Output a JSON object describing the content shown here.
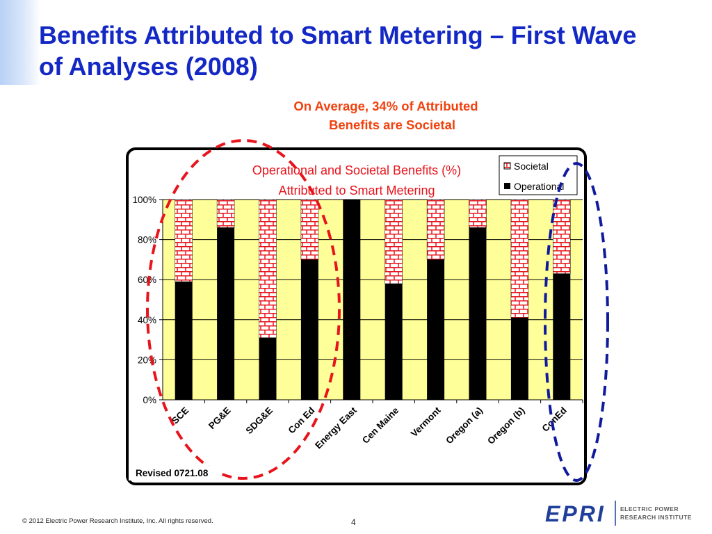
{
  "slide": {
    "title": "Benefits Attributed to Smart Metering – First Wave of Analyses (2008)",
    "callout_line1": "On Average, 34% of Attributed",
    "callout_line2": "Benefits are Societal",
    "revised_label": "Revised 0721.08",
    "footer_copyright": "© 2012 Electric Power Research Institute, Inc. All rights reserved.",
    "page_number": "4",
    "logo_text": "EPRI",
    "logo_subtitle_line1": "ELECTRIC POWER",
    "logo_subtitle_line2": "RESEARCH INSTITUTE"
  },
  "colors": {
    "title": "#1328c4",
    "callout": "#f0420f",
    "chart_title": "#e8141c",
    "plot_background": "#ffff99",
    "operational": "#000000",
    "societal_brick": "#e8141c",
    "red_ellipse": "#e8141c",
    "blue_ellipse": "#101a9c",
    "logo": "#1f3f99"
  },
  "chart_data": {
    "type": "bar",
    "stacked": true,
    "title_line1": "Operational and Societal Benefits (%)",
    "title_line2": "Attributed to Smart Metering",
    "categories": [
      "SCE",
      "PG&E",
      "SDG&E",
      "Con Ed",
      "Energy East",
      "Cen Maine",
      "Vermont",
      "Oregon (a)",
      "Oregon (b)",
      "ConEd"
    ],
    "series": [
      {
        "name": "Operational",
        "values": [
          59,
          86,
          31,
          70,
          100,
          58,
          70,
          86,
          41,
          63
        ]
      },
      {
        "name": "Societal",
        "values": [
          41,
          14,
          69,
          30,
          0,
          42,
          30,
          14,
          59,
          37
        ]
      }
    ],
    "ylim": [
      0,
      100
    ],
    "yticks": [
      "0%",
      "20%",
      "40%",
      "60%",
      "80%",
      "100%"
    ],
    "legend": [
      "Societal",
      "Operational"
    ],
    "legend_position": "top-right",
    "grid": true
  }
}
